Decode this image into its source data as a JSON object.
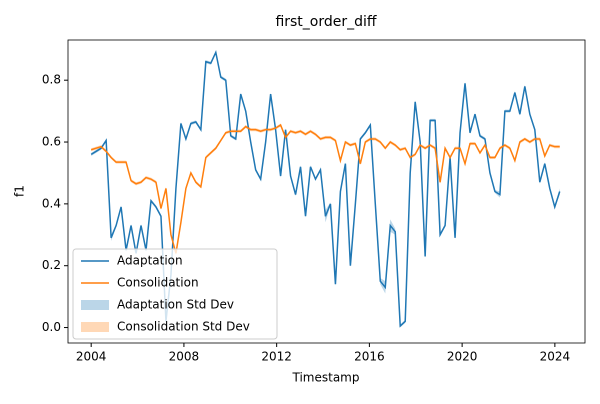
{
  "chart_data": {
    "type": "line",
    "title": "first_order_diff",
    "xlabel": "Timestamp",
    "ylabel": "f1",
    "x": [
      2004,
      2004.215,
      2004.43,
      2004.645,
      2004.86,
      2005.075,
      2005.29,
      2005.505,
      2005.72,
      2005.935,
      2006.15,
      2006.365,
      2006.58,
      2006.795,
      2007.01,
      2007.225,
      2007.44,
      2007.655,
      2007.87,
      2008.085,
      2008.3,
      2008.515,
      2008.73,
      2008.945,
      2009.16,
      2009.375,
      2009.59,
      2009.805,
      2010.02,
      2010.235,
      2010.45,
      2010.665,
      2010.88,
      2011.095,
      2011.31,
      2011.525,
      2011.74,
      2011.955,
      2012.17,
      2012.385,
      2012.6,
      2012.815,
      2013.03,
      2013.245,
      2013.46,
      2013.675,
      2013.89,
      2014.105,
      2014.32,
      2014.535,
      2014.75,
      2014.965,
      2015.18,
      2015.395,
      2015.61,
      2015.825,
      2016.04,
      2016.255,
      2016.47,
      2016.685,
      2016.9,
      2017.115,
      2017.33,
      2017.545,
      2017.76,
      2017.975,
      2018.19,
      2018.405,
      2018.62,
      2018.835,
      2019.05,
      2019.265,
      2019.48,
      2019.695,
      2019.91,
      2020.125,
      2020.34,
      2020.555,
      2020.77,
      2020.985,
      2021.2,
      2021.415,
      2021.63,
      2021.845,
      2022.06,
      2022.275,
      2022.49,
      2022.705,
      2022.92,
      2023.135,
      2023.35,
      2023.565,
      2023.78,
      2023.995,
      2024.21
    ],
    "series": [
      {
        "name": "Adaptation",
        "color": "#1f77b4",
        "std_name": "Adaptation Std Dev",
        "values": [
          0.56,
          0.57,
          0.58,
          0.605,
          0.29,
          0.33,
          0.39,
          0.25,
          0.33,
          0.24,
          0.33,
          0.25,
          0.41,
          0.39,
          0.36,
          0.02,
          0.17,
          0.45,
          0.66,
          0.61,
          0.66,
          0.665,
          0.64,
          0.86,
          0.855,
          0.89,
          0.81,
          0.8,
          0.62,
          0.61,
          0.755,
          0.7,
          0.6,
          0.51,
          0.48,
          0.6,
          0.755,
          0.64,
          0.49,
          0.64,
          0.49,
          0.43,
          0.52,
          0.36,
          0.52,
          0.48,
          0.51,
          0.36,
          0.4,
          0.14,
          0.44,
          0.53,
          0.2,
          0.4,
          0.61,
          0.63,
          0.655,
          0.4,
          0.15,
          0.13,
          0.33,
          0.31,
          0.005,
          0.02,
          0.5,
          0.73,
          0.6,
          0.23,
          0.67,
          0.67,
          0.3,
          0.33,
          0.55,
          0.29,
          0.63,
          0.79,
          0.63,
          0.69,
          0.62,
          0.61,
          0.5,
          0.44,
          0.43,
          0.7,
          0.7,
          0.76,
          0.69,
          0.78,
          0.69,
          0.64,
          0.47,
          0.53,
          0.45,
          0.39,
          0.44
        ],
        "std": [
          0.005,
          0.005,
          0.005,
          0.005,
          0.01,
          0.005,
          0.005,
          0.005,
          0.005,
          0.005,
          0.005,
          0.005,
          0.005,
          0.005,
          0.005,
          0.005,
          0.005,
          0.005,
          0.005,
          0.005,
          0.005,
          0.005,
          0.005,
          0.005,
          0.005,
          0.005,
          0.005,
          0.005,
          0.005,
          0.005,
          0.005,
          0.005,
          0.005,
          0.005,
          0.005,
          0.005,
          0.005,
          0.005,
          0.005,
          0.005,
          0.005,
          0.005,
          0.005,
          0.005,
          0.005,
          0.005,
          0.005,
          0.02,
          0.005,
          0.005,
          0.005,
          0.005,
          0.005,
          0.005,
          0.005,
          0.005,
          0.005,
          0.005,
          0.01,
          0.02,
          0.02,
          0.01,
          0.005,
          0.005,
          0.005,
          0.005,
          0.005,
          0.005,
          0.005,
          0.005,
          0.005,
          0.005,
          0.005,
          0.005,
          0.005,
          0.005,
          0.005,
          0.005,
          0.005,
          0.005,
          0.005,
          0.005,
          0.01,
          0.005,
          0.005,
          0.005,
          0.005,
          0.005,
          0.005,
          0.005,
          0.005,
          0.005,
          0.005,
          0.005,
          0.01
        ]
      },
      {
        "name": "Consolidation",
        "color": "#ff7f0e",
        "std_name": "Consolidation Std Dev",
        "values": [
          0.575,
          0.58,
          0.585,
          0.57,
          0.55,
          0.535,
          0.535,
          0.535,
          0.475,
          0.465,
          0.47,
          0.485,
          0.48,
          0.47,
          0.385,
          0.45,
          0.3,
          0.24,
          0.34,
          0.45,
          0.5,
          0.47,
          0.455,
          0.55,
          0.565,
          0.58,
          0.605,
          0.63,
          0.635,
          0.635,
          0.635,
          0.65,
          0.64,
          0.64,
          0.635,
          0.64,
          0.64,
          0.645,
          0.655,
          0.615,
          0.635,
          0.63,
          0.635,
          0.625,
          0.635,
          0.625,
          0.61,
          0.615,
          0.615,
          0.605,
          0.54,
          0.6,
          0.59,
          0.595,
          0.53,
          0.6,
          0.61,
          0.61,
          0.6,
          0.58,
          0.6,
          0.59,
          0.575,
          0.58,
          0.55,
          0.56,
          0.59,
          0.58,
          0.59,
          0.58,
          0.47,
          0.58,
          0.55,
          0.58,
          0.58,
          0.53,
          0.595,
          0.595,
          0.565,
          0.59,
          0.55,
          0.55,
          0.58,
          0.59,
          0.58,
          0.54,
          0.6,
          0.61,
          0.6,
          0.61,
          0.61,
          0.555,
          0.59,
          0.585,
          0.585
        ],
        "std": [
          0.005,
          0.005,
          0.005,
          0.005,
          0.005,
          0.005,
          0.005,
          0.005,
          0.005,
          0.005,
          0.005,
          0.005,
          0.005,
          0.005,
          0.005,
          0.005,
          0.005,
          0.005,
          0.005,
          0.005,
          0.005,
          0.005,
          0.005,
          0.005,
          0.005,
          0.005,
          0.005,
          0.005,
          0.005,
          0.005,
          0.005,
          0.005,
          0.005,
          0.005,
          0.005,
          0.005,
          0.005,
          0.005,
          0.005,
          0.005,
          0.005,
          0.005,
          0.005,
          0.005,
          0.005,
          0.005,
          0.005,
          0.005,
          0.005,
          0.005,
          0.005,
          0.005,
          0.005,
          0.005,
          0.005,
          0.005,
          0.005,
          0.005,
          0.005,
          0.005,
          0.005,
          0.005,
          0.005,
          0.005,
          0.005,
          0.005,
          0.005,
          0.005,
          0.005,
          0.005,
          0.005,
          0.005,
          0.005,
          0.005,
          0.005,
          0.005,
          0.005,
          0.005,
          0.005,
          0.005,
          0.005,
          0.005,
          0.005,
          0.005,
          0.005,
          0.005,
          0.005,
          0.005,
          0.005,
          0.005,
          0.005,
          0.005,
          0.005,
          0.005,
          0.005
        ]
      }
    ],
    "xlim": [
      2003,
      2025.3
    ],
    "ylim": [
      -0.05,
      0.93
    ],
    "xticks": [
      2004,
      2008,
      2012,
      2016,
      2020,
      2024
    ],
    "yticks": [
      {
        "value": 0,
        "label": "0.0"
      },
      0.2,
      0.4,
      0.6,
      0.8
    ],
    "legend": "lower left"
  }
}
